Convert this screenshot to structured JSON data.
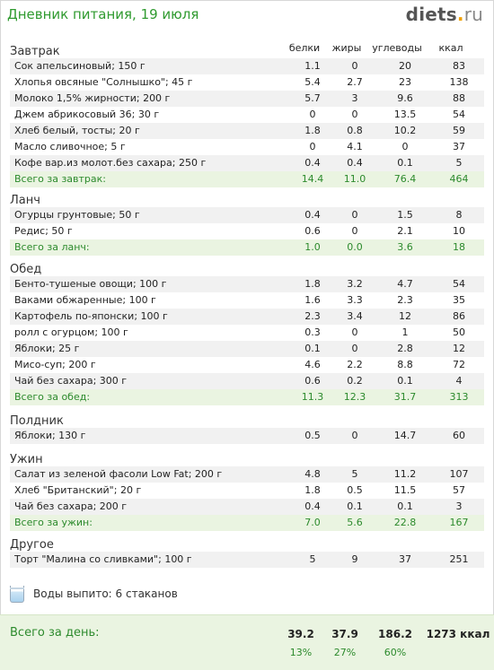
{
  "header": {
    "title": "Дневник питания, 19 июля",
    "logo_main": "diets",
    "logo_dot": ".",
    "logo_tld": "ru"
  },
  "columns": [
    "белки",
    "жиры",
    "углеводы",
    "ккал"
  ],
  "meals": [
    {
      "title": "Завтрак",
      "items": [
        {
          "name": "Сок апельсиновый; 150 г",
          "p": "1.1",
          "f": "0",
          "c": "20",
          "kcal": "83"
        },
        {
          "name": "Хлопья овсяные \"Солнышко\"; 45 г",
          "p": "5.4",
          "f": "2.7",
          "c": "23",
          "kcal": "138"
        },
        {
          "name": "Молоко 1,5% жирности; 200 г",
          "p": "5.7",
          "f": "3",
          "c": "9.6",
          "kcal": "88"
        },
        {
          "name": "Джем абрикосовый 36; 30 г",
          "p": "0",
          "f": "0",
          "c": "13.5",
          "kcal": "54"
        },
        {
          "name": "Хлеб белый, тосты; 20 г",
          "p": "1.8",
          "f": "0.8",
          "c": "10.2",
          "kcal": "59"
        },
        {
          "name": "Масло сливочное; 5 г",
          "p": "0",
          "f": "4.1",
          "c": "0",
          "kcal": "37"
        },
        {
          "name": "Кофе вар.из молот.без сахара; 250 г",
          "p": "0.4",
          "f": "0.4",
          "c": "0.1",
          "kcal": "5"
        }
      ],
      "total": {
        "name": "Всего за завтрак:",
        "p": "14.4",
        "f": "11.0",
        "c": "76.4",
        "kcal": "464"
      }
    },
    {
      "title": "Ланч",
      "items": [
        {
          "name": "Огурцы грунтовые; 50 г",
          "p": "0.4",
          "f": "0",
          "c": "1.5",
          "kcal": "8"
        },
        {
          "name": "Редис; 50 г",
          "p": "0.6",
          "f": "0",
          "c": "2.1",
          "kcal": "10"
        }
      ],
      "total": {
        "name": "Всего за ланч:",
        "p": "1.0",
        "f": "0.0",
        "c": "3.6",
        "kcal": "18"
      }
    },
    {
      "title": "Обед",
      "items": [
        {
          "name": "Бенто-тушеные овощи; 100 г",
          "p": "1.8",
          "f": "3.2",
          "c": "4.7",
          "kcal": "54"
        },
        {
          "name": "Ваками обжаренные; 100 г",
          "p": "1.6",
          "f": "3.3",
          "c": "2.3",
          "kcal": "35"
        },
        {
          "name": "Картофель по-японски; 100 г",
          "p": "2.3",
          "f": "3.4",
          "c": "12",
          "kcal": "86"
        },
        {
          "name": "ролл с огурцом; 100 г",
          "p": "0.3",
          "f": "0",
          "c": "1",
          "kcal": "50"
        },
        {
          "name": "Яблоки; 25 г",
          "p": "0.1",
          "f": "0",
          "c": "2.8",
          "kcal": "12"
        },
        {
          "name": "Мисо-суп; 200 г",
          "p": "4.6",
          "f": "2.2",
          "c": "8.8",
          "kcal": "72"
        },
        {
          "name": "Чай без сахара; 300 г",
          "p": "0.6",
          "f": "0.2",
          "c": "0.1",
          "kcal": "4"
        }
      ],
      "total": {
        "name": "Всего за обед:",
        "p": "11.3",
        "f": "12.3",
        "c": "31.7",
        "kcal": "313"
      }
    },
    {
      "title": "Полдник",
      "items": [
        {
          "name": "Яблоки; 130 г",
          "p": "0.5",
          "f": "0",
          "c": "14.7",
          "kcal": "60"
        }
      ],
      "total": null
    },
    {
      "title": "Ужин",
      "items": [
        {
          "name": "Салат из зеленой фасоли Low Fat; 200 г",
          "p": "4.8",
          "f": "5",
          "c": "11.2",
          "kcal": "107"
        },
        {
          "name": "Хлеб \"Британский\"; 20 г",
          "p": "1.8",
          "f": "0.5",
          "c": "11.5",
          "kcal": "57"
        },
        {
          "name": "Чай без сахара; 200 г",
          "p": "0.4",
          "f": "0.1",
          "c": "0.1",
          "kcal": "3"
        }
      ],
      "total": {
        "name": "Всего за ужин:",
        "p": "7.0",
        "f": "5.6",
        "c": "22.8",
        "kcal": "167"
      }
    },
    {
      "title": "Другое",
      "items": [
        {
          "name": "Торт \"Малина со сливками\"; 100 г",
          "p": "5",
          "f": "9",
          "c": "37",
          "kcal": "251"
        }
      ],
      "total": null
    }
  ],
  "water": {
    "label": "Воды выпито: 6 стаканов",
    "icon": "water-glass-icon"
  },
  "day_total": {
    "label": "Всего за день:",
    "p": "39.2",
    "f": "37.9",
    "c": "186.2",
    "kcal": "1273 ккал",
    "p_pct": "13%",
    "f_pct": "27%",
    "c_pct": "60%"
  },
  "colors": {
    "accent_green": "#2c8a2c",
    "total_bg": "#eaf4e1",
    "alt_row_bg": "#f1f1f1"
  }
}
